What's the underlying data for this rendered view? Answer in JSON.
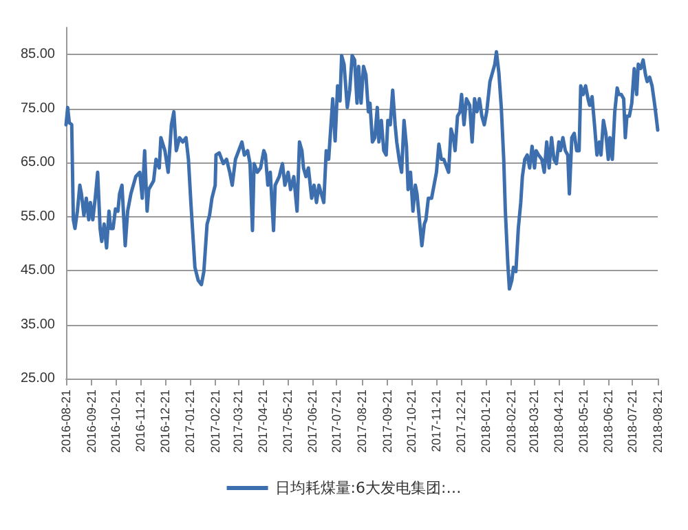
{
  "chart_data": {
    "type": "line",
    "x": [
      "2016-08-21",
      "2016-08-23",
      "2016-08-25",
      "2016-08-28",
      "2016-08-30",
      "2016-09-01",
      "2016-09-04",
      "2016-09-07",
      "2016-09-09",
      "2016-09-12",
      "2016-09-15",
      "2016-09-18",
      "2016-09-20",
      "2016-09-23",
      "2016-09-26",
      "2016-09-29",
      "2016-10-02",
      "2016-10-04",
      "2016-10-07",
      "2016-10-10",
      "2016-10-13",
      "2016-10-15",
      "2016-10-18",
      "2016-10-21",
      "2016-10-24",
      "2016-10-26",
      "2016-10-29",
      "2016-11-02",
      "2016-11-05",
      "2016-11-09",
      "2016-11-15",
      "2016-11-20",
      "2016-11-23",
      "2016-11-26",
      "2016-11-29",
      "2016-12-01",
      "2016-12-07",
      "2016-12-10",
      "2016-12-14",
      "2016-12-16",
      "2016-12-21",
      "2016-12-25",
      "2016-12-29",
      "2017-01-01",
      "2017-01-04",
      "2017-01-08",
      "2017-01-12",
      "2017-01-16",
      "2017-01-19",
      "2017-01-22",
      "2017-01-25",
      "2017-01-27",
      "2017-01-31",
      "2017-02-04",
      "2017-02-07",
      "2017-02-11",
      "2017-02-14",
      "2017-02-17",
      "2017-02-21",
      "2017-02-22",
      "2017-02-26",
      "2017-03-03",
      "2017-03-07",
      "2017-03-11",
      "2017-03-14",
      "2017-03-18",
      "2017-03-22",
      "2017-03-26",
      "2017-03-29",
      "2017-04-02",
      "2017-04-05",
      "2017-04-08",
      "2017-04-10",
      "2017-04-14",
      "2017-04-18",
      "2017-04-22",
      "2017-04-24",
      "2017-04-27",
      "2017-04-30",
      "2017-05-04",
      "2017-05-06",
      "2017-05-11",
      "2017-05-15",
      "2017-05-18",
      "2017-05-22",
      "2017-05-25",
      "2017-05-29",
      "2017-06-02",
      "2017-06-05",
      "2017-06-08",
      "2017-06-10",
      "2017-06-13",
      "2017-06-16",
      "2017-06-20",
      "2017-06-23",
      "2017-06-26",
      "2017-06-29",
      "2017-07-02",
      "2017-07-05",
      "2017-07-08",
      "2017-07-11",
      "2017-07-16",
      "2017-07-19",
      "2017-07-22",
      "2017-07-25",
      "2017-07-27",
      "2017-07-30",
      "2017-08-03",
      "2017-08-06",
      "2017-08-09",
      "2017-08-12",
      "2017-08-15",
      "2017-08-17",
      "2017-08-20",
      "2017-08-23",
      "2017-08-26",
      "2017-08-29",
      "2017-08-31",
      "2017-09-03",
      "2017-09-06",
      "2017-09-09",
      "2017-09-11",
      "2017-09-14",
      "2017-09-17",
      "2017-09-20",
      "2017-09-22",
      "2017-09-25",
      "2017-09-28",
      "2017-10-01",
      "2017-10-03",
      "2017-10-06",
      "2017-10-09",
      "2017-10-12",
      "2017-10-15",
      "2017-10-17",
      "2017-10-20",
      "2017-10-23",
      "2017-10-26",
      "2017-10-28",
      "2017-10-31",
      "2017-11-03",
      "2017-11-06",
      "2017-11-08",
      "2017-11-11",
      "2017-11-15",
      "2017-11-18",
      "2017-11-21",
      "2017-11-24",
      "2017-11-27",
      "2017-11-30",
      "2017-12-03",
      "2017-12-06",
      "2017-12-09",
      "2017-12-12",
      "2017-12-14",
      "2017-12-17",
      "2017-12-20",
      "2017-12-22",
      "2017-12-25",
      "2017-12-28",
      "2018-01-01",
      "2018-01-04",
      "2018-01-07",
      "2018-01-10",
      "2018-01-13",
      "2018-01-16",
      "2018-01-19",
      "2018-01-22",
      "2018-01-26",
      "2018-01-29",
      "2018-02-01",
      "2018-02-03",
      "2018-02-06",
      "2018-02-09",
      "2018-02-12",
      "2018-02-14",
      "2018-02-17",
      "2018-02-19",
      "2018-02-22",
      "2018-02-24",
      "2018-02-27",
      "2018-03-02",
      "2018-03-05",
      "2018-03-07",
      "2018-03-10",
      "2018-03-13",
      "2018-03-16",
      "2018-03-19",
      "2018-03-22",
      "2018-03-24",
      "2018-03-27",
      "2018-03-31",
      "2018-04-03",
      "2018-04-06",
      "2018-04-09",
      "2018-04-12",
      "2018-04-15",
      "2018-04-18",
      "2018-04-21",
      "2018-04-23",
      "2018-04-26",
      "2018-04-29",
      "2018-05-02",
      "2018-05-04",
      "2018-05-07",
      "2018-05-10",
      "2018-05-13",
      "2018-05-16",
      "2018-05-18",
      "2018-05-21",
      "2018-05-24",
      "2018-05-27",
      "2018-05-29",
      "2018-06-01",
      "2018-06-04",
      "2018-06-07",
      "2018-06-10",
      "2018-06-12",
      "2018-06-15",
      "2018-06-18",
      "2018-06-21",
      "2018-06-23",
      "2018-06-26",
      "2018-06-29",
      "2018-07-02",
      "2018-07-04",
      "2018-07-07",
      "2018-07-10",
      "2018-07-12",
      "2018-07-14",
      "2018-07-17",
      "2018-07-20",
      "2018-07-23",
      "2018-07-26",
      "2018-07-28",
      "2018-07-31",
      "2018-08-03",
      "2018-08-06",
      "2018-08-08",
      "2018-08-11",
      "2018-08-14",
      "2018-08-17",
      "2018-08-19",
      "2018-08-21"
    ],
    "series": [
      {
        "name": "日均耗煤量:6大发电集团:…",
        "color": "#3d6eae",
        "values": [
          72,
          75.2,
          72.4,
          72,
          54.4,
          52.8,
          56,
          60.8,
          59.2,
          55.2,
          58.4,
          54.4,
          57.6,
          54.4,
          58.4,
          63.2,
          52.8,
          50.4,
          53.6,
          49.2,
          56,
          52.8,
          52.8,
          56.4,
          56,
          59.2,
          60.8,
          49.6,
          56,
          59.2,
          62.4,
          63.2,
          58.4,
          67.2,
          56,
          60,
          61.6,
          65.6,
          64,
          69.6,
          67.2,
          63.2,
          72,
          74.4,
          67.2,
          69.6,
          68.8,
          69.6,
          65.6,
          57.6,
          50.4,
          45.6,
          43.2,
          42.4,
          44.8,
          53.6,
          55.2,
          58.4,
          60.8,
          66.4,
          66.8,
          64.8,
          65.6,
          63.2,
          60.8,
          65.6,
          67.2,
          68.8,
          66.4,
          67.2,
          64.8,
          52.4,
          64.8,
          63.2,
          64,
          67.2,
          66.4,
          60.8,
          63.2,
          52.4,
          60.8,
          62.4,
          64.8,
          60.8,
          63.2,
          60,
          62.4,
          56,
          68.8,
          67.2,
          64,
          62.4,
          64,
          58.4,
          60.8,
          57.6,
          60.8,
          59.2,
          57.6,
          67.2,
          65.6,
          76.8,
          69,
          79.2,
          76.4,
          84.8,
          83.2,
          75.2,
          78.4,
          84.8,
          84,
          76,
          82.8,
          76,
          82.8,
          81.2,
          74.4,
          76,
          68.8,
          69.6,
          75.2,
          68.8,
          72.8,
          67.2,
          66.4,
          72.8,
          72,
          78.4,
          72,
          68.8,
          65.6,
          63.2,
          72.8,
          68,
          60,
          63.2,
          56,
          60.8,
          59.2,
          54.4,
          49.6,
          53.6,
          54.4,
          58.4,
          58.4,
          60.8,
          63.2,
          68.4,
          65.6,
          65.6,
          64.4,
          63.2,
          71.2,
          69.6,
          67.2,
          73.6,
          74.4,
          77.6,
          72,
          76.8,
          75.6,
          68.8,
          76.8,
          74.4,
          76.8,
          73.6,
          72,
          74.4,
          80,
          81.6,
          83.2,
          85.5,
          81.6,
          75.2,
          65.6,
          56,
          46.4,
          41.6,
          43.2,
          45.6,
          44.8,
          52.8,
          57.6,
          62.4,
          65.6,
          66.4,
          64,
          68,
          64,
          67.2,
          66.4,
          65.6,
          63.2,
          68.8,
          64,
          69.6,
          65.6,
          64.8,
          68.8,
          67.2,
          69.6,
          67.2,
          66.4,
          59.2,
          69.6,
          70.4,
          67.2,
          67.2,
          79.2,
          77.6,
          79.2,
          76.8,
          75.6,
          77.2,
          72,
          66.4,
          68.8,
          66.4,
          72.8,
          70.4,
          65.6,
          69.6,
          65.6,
          74.4,
          78.8,
          77.6,
          77.6,
          76.8,
          69.6,
          73.6,
          73.6,
          76,
          82.4,
          77.6,
          83.2,
          82.4,
          84,
          81.2,
          80,
          80.8,
          79.2,
          76,
          73.6,
          71
        ]
      }
    ],
    "xlim": [
      "2016-08-21",
      "2018-08-21"
    ],
    "xticks": [
      "2016-08-21",
      "2016-09-21",
      "2016-10-21",
      "2016-11-21",
      "2016-12-21",
      "2017-01-21",
      "2017-02-21",
      "2017-03-21",
      "2017-04-21",
      "2017-05-21",
      "2017-06-21",
      "2017-07-21",
      "2017-08-21",
      "2017-09-21",
      "2017-10-21",
      "2017-11-21",
      "2017-12-21",
      "2018-01-21",
      "2018-02-21",
      "2018-03-21",
      "2018-04-21",
      "2018-05-21",
      "2018-06-21",
      "2018-07-21",
      "2018-08-21"
    ],
    "ylim": [
      25,
      90
    ],
    "yticks": [
      {
        "value": 25,
        "label": "25.00"
      },
      {
        "value": 35,
        "label": "35.00"
      },
      {
        "value": 45,
        "label": "45.00"
      },
      {
        "value": 55,
        "label": "55.00"
      },
      {
        "value": 65,
        "label": "65.00"
      },
      {
        "value": 75,
        "label": "75.00"
      },
      {
        "value": 85,
        "label": "85.00"
      }
    ],
    "grid": "y",
    "legend": "bottom",
    "marker": "none",
    "line_style": "solid"
  }
}
